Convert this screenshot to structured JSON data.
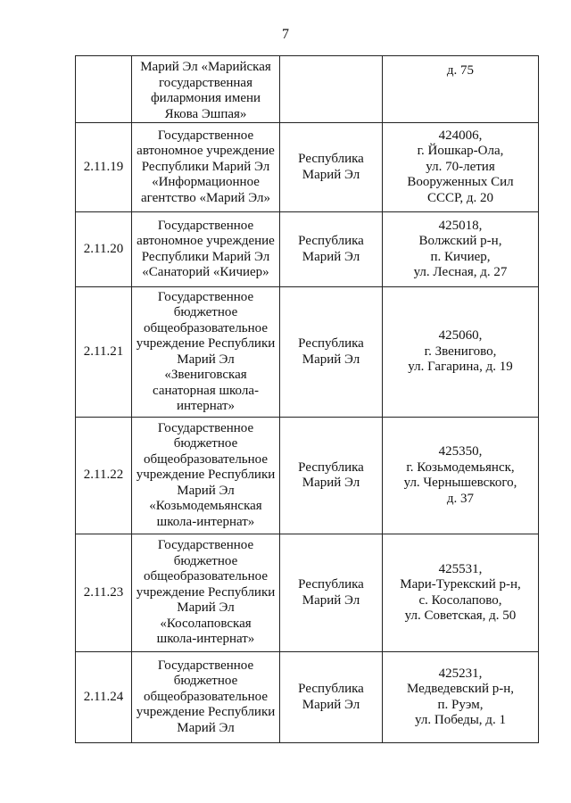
{
  "page_number": "7",
  "rows": [
    {
      "num": "",
      "name": "Марий Эл «Марийская\nгосударственная\nфилармония имени\nЯкова Эшпая»",
      "region": "",
      "address": "д. 75"
    },
    {
      "num": "2.11.19",
      "name": "Государственное\nавтономное учреждение\nРеспублики Марий Эл\n«Информационное\nагентство «Марий Эл»",
      "region": "Республика\nМарий Эл",
      "address": "424006,\nг. Йошкар-Ола,\nул. 70-летия\nВооруженных Сил\nСССР, д. 20"
    },
    {
      "num": "2.11.20",
      "name": "Государственное\nавтономное учреждение\nРеспублики Марий Эл\n«Санаторий «Кичиер»",
      "region": "Республика\nМарий Эл",
      "address": "425018,\nВолжский р-н,\nп. Кичиер,\nул. Лесная, д. 27"
    },
    {
      "num": "2.11.21",
      "name": "Государственное\nбюджетное\nобщеобразовательное\nучреждение Республики\nМарий Эл\n«Звениговская\nсанаторная школа-\nинтернат»",
      "region": "Республика\nМарий Эл",
      "address": "425060,\nг. Звенигово,\nул. Гагарина, д. 19"
    },
    {
      "num": "2.11.22",
      "name": "Государственное\nбюджетное\nобщеобразовательное\nучреждение Республики\nМарий Эл\n«Козьмодемьянская\nшкола-интернат»",
      "region": "Республика\nМарий Эл",
      "address": "425350,\nг. Козьмодемьянск,\nул. Чернышевского,\nд. 37"
    },
    {
      "num": "2.11.23",
      "name": "Государственное\nбюджетное\nобщеобразовательное\nучреждение Республики\nМарий Эл\n«Косолаповская\nшкола-интернат»",
      "region": "Республика\nМарий Эл",
      "address": "425531,\nМари-Турекский р-н,\nс. Косолапово,\nул. Советская, д. 50"
    },
    {
      "num": "2.11.24",
      "name": "Государственное\nбюджетное\nобщеобразовательное\nучреждение Республики\nМарий Эл",
      "region": "Республика\nМарий Эл",
      "address": "425231,\nМедведевский р-н,\nп. Руэм,\nул. Победы, д. 1"
    }
  ]
}
